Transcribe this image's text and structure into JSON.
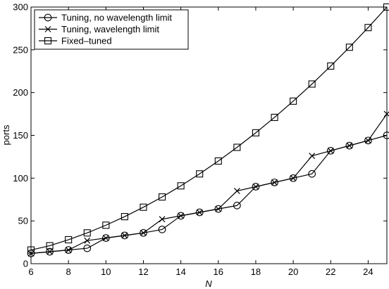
{
  "chart_data": {
    "type": "line",
    "title": "",
    "xlabel": "N",
    "ylabel": "ports",
    "xlim": [
      6,
      25
    ],
    "ylim": [
      0,
      300
    ],
    "xticks": [
      6,
      8,
      10,
      12,
      14,
      16,
      18,
      20,
      22,
      24
    ],
    "yticks": [
      0,
      50,
      100,
      150,
      200,
      250,
      300
    ],
    "grid": false,
    "legend_position": "top-left",
    "x": [
      6,
      7,
      8,
      9,
      10,
      11,
      12,
      13,
      14,
      15,
      16,
      17,
      18,
      19,
      20,
      21,
      22,
      23,
      24,
      25
    ],
    "series": [
      {
        "name": "Tuning, no wavelength limit",
        "marker": "circle",
        "values": [
          12,
          14,
          16,
          18,
          30,
          33,
          36,
          40,
          56,
          60,
          64,
          68,
          90,
          95,
          100,
          105,
          132,
          138,
          144,
          150
        ]
      },
      {
        "name": "Tuning, wavelength limit",
        "marker": "x",
        "values": [
          12,
          14,
          16,
          27,
          30,
          33,
          36,
          52,
          56,
          60,
          64,
          85,
          90,
          95,
          100,
          126,
          132,
          138,
          144,
          175
        ]
      },
      {
        "name": "Fixed–tuned",
        "marker": "square",
        "values": [
          16,
          21,
          28,
          36,
          45,
          55,
          66,
          78,
          91,
          105,
          120,
          136,
          153,
          171,
          190,
          210,
          231,
          253,
          276,
          300
        ]
      }
    ],
    "colors": {
      "line": "#000000",
      "background": "#ffffff"
    }
  }
}
